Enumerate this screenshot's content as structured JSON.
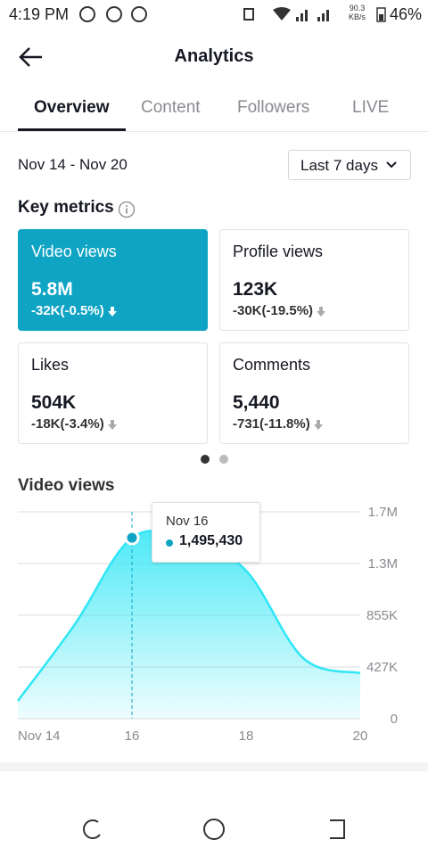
{
  "status_bar": {
    "time": "4:19 PM",
    "speed": "90.3",
    "speed_unit": "KB/s",
    "battery": "46%"
  },
  "header": {
    "title": "Analytics"
  },
  "tabs": {
    "items": [
      "Overview",
      "Content",
      "Followers",
      "LIVE"
    ],
    "selected": 0
  },
  "date_range": "Nov 14 - Nov 20",
  "filter": "Last 7 days",
  "key_metrics": {
    "title": "Key metrics",
    "cards": [
      {
        "label": "Video views",
        "value": "5.8M",
        "change": "-32K(-0.5%)"
      },
      {
        "label": "Profile views",
        "value": "123K",
        "change": "-30K(-19.5%)"
      },
      {
        "label": "Likes",
        "value": "504K",
        "change": "-18K(-3.4%)"
      },
      {
        "label": "Comments",
        "value": "5,440",
        "change": "-731(-11.8%)"
      }
    ],
    "selected": 0
  },
  "chart": {
    "type": "area",
    "title": "Video views",
    "categories": [
      "Nov 14",
      null,
      "16",
      null,
      "18",
      null,
      "20"
    ],
    "values": [
      147000,
      781000,
      1495430,
      1480000,
      1224000,
      501000,
      376000
    ],
    "value_labels": [
      null,
      null,
      "1,495,430",
      null,
      null,
      null,
      null
    ],
    "tooltip_title": "Nov 16",
    "color": "#2ee6f5",
    "ylim": [
      0,
      1710000
    ],
    "yticks": [
      0,
      {
        "value": 427000,
        "label": "427K"
      },
      {
        "value": 855000,
        "label": "855K"
      },
      {
        "value": 1282500,
        "label": "1.3M"
      },
      {
        "value": 1710000,
        "label": "1.7M"
      }
    ],
    "grid": true
  }
}
